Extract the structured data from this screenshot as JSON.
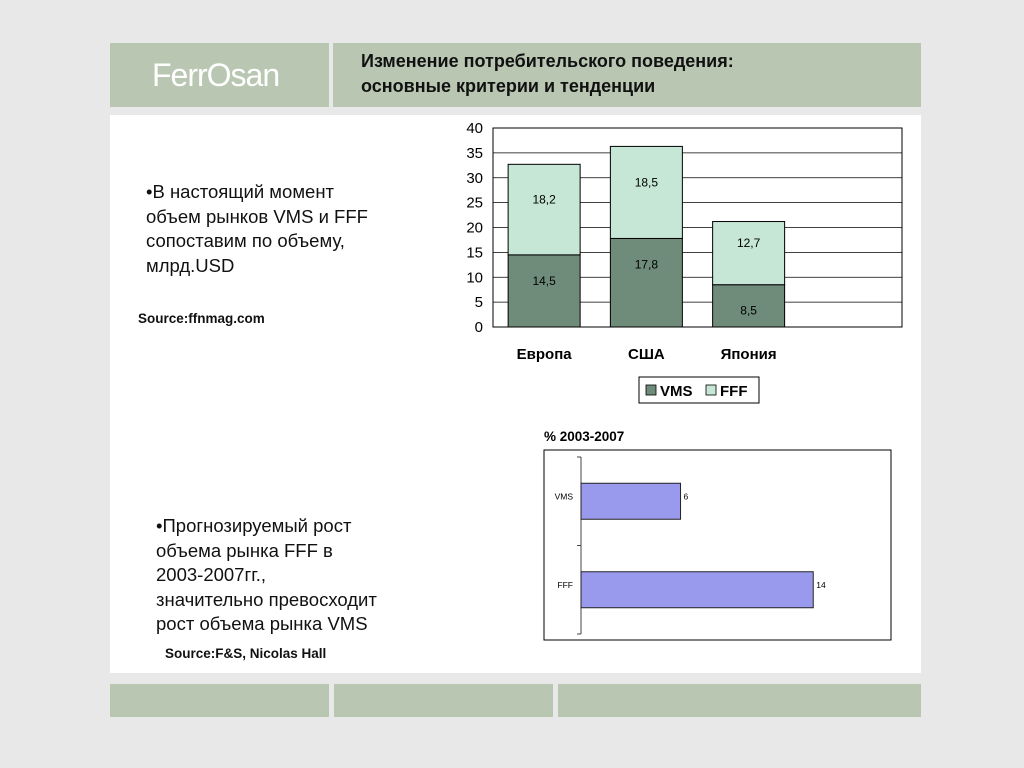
{
  "header": {
    "logo_text": "FerrOsan",
    "title_line1": "Изменение потребительского поведения:",
    "title_line2": "основные критерии и тенденции"
  },
  "left": {
    "bullet1_lines": [
      "•В настоящий момент",
      "объем рынков VMS и  FFF",
      "сопоставим по объему,",
      "млрд.USD"
    ],
    "source1": "Source:ffnmag.com",
    "bullet2_lines": [
      "•Прогнозируемый рост",
      "объема рынка FFF в",
      "2003-2007гг.,",
      "значительно превосходит",
      "рост объема рынка VMS"
    ],
    "source2": "Source:F&S, Nicolas Hall"
  },
  "colors": {
    "vms": "#6f8c7a",
    "fff": "#c6e6d6",
    "bar2": "#9999ee",
    "band": "#b9c7b2"
  },
  "chart_data": [
    {
      "type": "bar",
      "stacked": true,
      "categories": [
        "Европа",
        "США",
        "Япония"
      ],
      "series": [
        {
          "name": "VMS",
          "values": [
            14.5,
            17.8,
            8.5
          ],
          "labels": [
            "14,5",
            "17,8",
            "8,5"
          ]
        },
        {
          "name": "FFF",
          "values": [
            18.2,
            18.5,
            12.7
          ],
          "labels": [
            "18,2",
            "18,5",
            "12,7"
          ]
        }
      ],
      "yticks": [
        0,
        5,
        10,
        15,
        20,
        25,
        30,
        35,
        40
      ],
      "ylim": [
        0,
        40
      ],
      "grid": true,
      "legend": "bottom"
    },
    {
      "type": "bar",
      "orientation": "horizontal",
      "title": "% 2003-2007",
      "categories": [
        "VMS",
        "FFF"
      ],
      "values": [
        6,
        14
      ],
      "xlim": [
        0,
        17
      ]
    }
  ]
}
